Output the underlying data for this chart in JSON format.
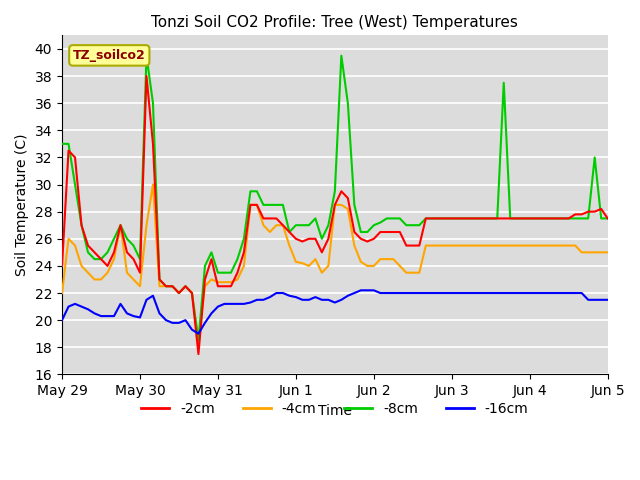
{
  "title": "Tonzi Soil CO2 Profile: Tree (West) Temperatures",
  "xlabel": "Time",
  "ylabel": "Soil Temperature (C)",
  "ylim": [
    16,
    41
  ],
  "yticks": [
    16,
    18,
    20,
    22,
    24,
    26,
    28,
    30,
    32,
    34,
    36,
    38,
    40
  ],
  "legend_label": "TZ_soilco2",
  "legend_text_color": "#8B0000",
  "legend_box_color": "#FFFF99",
  "series_colors": {
    "-2cm": "#FF0000",
    "-4cm": "#FFA500",
    "-8cm": "#00CC00",
    "-16cm": "#0000FF"
  },
  "background_color": "#DCDCDC",
  "xtick_labels": [
    "May 29",
    "May 30",
    "May 31",
    "Jun 1",
    "Jun 2",
    "Jun 3",
    "Jun 4",
    "Jun 5"
  ],
  "series_2cm": [
    24.0,
    32.5,
    32.0,
    27.0,
    25.5,
    25.0,
    24.5,
    24.0,
    25.0,
    27.0,
    25.0,
    24.5,
    23.5,
    38.0,
    33.0,
    23.0,
    22.5,
    22.5,
    22.0,
    22.5,
    22.0,
    17.5,
    23.0,
    24.5,
    22.5,
    22.5,
    22.5,
    23.5,
    25.0,
    28.5,
    28.5,
    27.5,
    27.5,
    27.5,
    27.0,
    26.5,
    26.0,
    25.8,
    26.0,
    26.0,
    25.0,
    26.0,
    28.5,
    29.5,
    29.0,
    26.5,
    26.0,
    25.8,
    26.0,
    26.5,
    26.5,
    26.5,
    26.5,
    25.5,
    25.5,
    25.5,
    27.5,
    27.5,
    27.5,
    27.5,
    27.5,
    27.5,
    27.5,
    27.5,
    27.5,
    27.5,
    27.5,
    27.5,
    27.5,
    27.5,
    27.5,
    27.5,
    27.5,
    27.5,
    27.5,
    27.5,
    27.5,
    27.5,
    27.5,
    27.8,
    27.8,
    28.0,
    28.0,
    28.2,
    27.5
  ],
  "series_4cm": [
    22.0,
    26.0,
    25.5,
    24.0,
    23.5,
    23.0,
    23.0,
    23.5,
    24.5,
    27.0,
    23.5,
    23.0,
    22.5,
    27.0,
    30.0,
    22.5,
    22.5,
    22.5,
    22.0,
    22.5,
    22.0,
    18.5,
    22.5,
    23.0,
    22.8,
    22.8,
    22.8,
    23.0,
    24.0,
    28.5,
    28.5,
    27.0,
    26.5,
    27.0,
    27.0,
    25.5,
    24.3,
    24.2,
    24.0,
    24.5,
    23.5,
    24.0,
    28.5,
    28.5,
    28.2,
    25.5,
    24.3,
    24.0,
    24.0,
    24.5,
    24.5,
    24.5,
    24.0,
    23.5,
    23.5,
    23.5,
    25.5,
    25.5,
    25.5,
    25.5,
    25.5,
    25.5,
    25.5,
    25.5,
    25.5,
    25.5,
    25.5,
    25.5,
    25.5,
    25.5,
    25.5,
    25.5,
    25.5,
    25.5,
    25.5,
    25.5,
    25.5,
    25.5,
    25.5,
    25.5,
    25.0,
    25.0,
    25.0,
    25.0,
    25.0
  ],
  "series_8cm": [
    33.0,
    33.0,
    30.0,
    27.0,
    25.0,
    24.5,
    24.5,
    25.0,
    26.0,
    27.0,
    26.0,
    25.5,
    24.5,
    39.5,
    36.0,
    23.0,
    22.5,
    22.5,
    22.0,
    22.5,
    22.0,
    18.5,
    24.0,
    25.0,
    23.5,
    23.5,
    23.5,
    24.5,
    26.0,
    29.5,
    29.5,
    28.5,
    28.5,
    28.5,
    28.5,
    26.5,
    27.0,
    27.0,
    27.0,
    27.5,
    26.0,
    27.0,
    29.5,
    39.5,
    36.0,
    28.5,
    26.5,
    26.5,
    27.0,
    27.2,
    27.5,
    27.5,
    27.5,
    27.0,
    27.0,
    27.0,
    27.5,
    27.5,
    27.5,
    27.5,
    27.5,
    27.5,
    27.5,
    27.5,
    27.5,
    27.5,
    27.5,
    27.5,
    37.5,
    27.5,
    27.5,
    27.5,
    27.5,
    27.5,
    27.5,
    27.5,
    27.5,
    27.5,
    27.5,
    27.5,
    27.5,
    27.5,
    32.0,
    27.5,
    27.5
  ],
  "series_16cm": [
    20.0,
    21.0,
    21.2,
    21.0,
    20.8,
    20.5,
    20.3,
    20.3,
    20.3,
    21.2,
    20.5,
    20.3,
    20.2,
    21.5,
    21.8,
    20.5,
    20.0,
    19.8,
    19.8,
    20.0,
    19.3,
    19.0,
    19.8,
    20.5,
    21.0,
    21.2,
    21.2,
    21.2,
    21.2,
    21.3,
    21.5,
    21.5,
    21.7,
    22.0,
    22.0,
    21.8,
    21.7,
    21.5,
    21.5,
    21.7,
    21.5,
    21.5,
    21.3,
    21.5,
    21.8,
    22.0,
    22.2,
    22.2,
    22.2,
    22.0,
    22.0,
    22.0,
    22.0,
    22.0,
    22.0,
    22.0,
    22.0,
    22.0,
    22.0,
    22.0,
    22.0,
    22.0,
    22.0,
    22.0,
    22.0,
    22.0,
    22.0,
    22.0,
    22.0,
    22.0,
    22.0,
    22.0,
    22.0,
    22.0,
    22.0,
    22.0,
    22.0,
    22.0,
    22.0,
    22.0,
    22.0,
    21.5,
    21.5,
    21.5,
    21.5
  ]
}
